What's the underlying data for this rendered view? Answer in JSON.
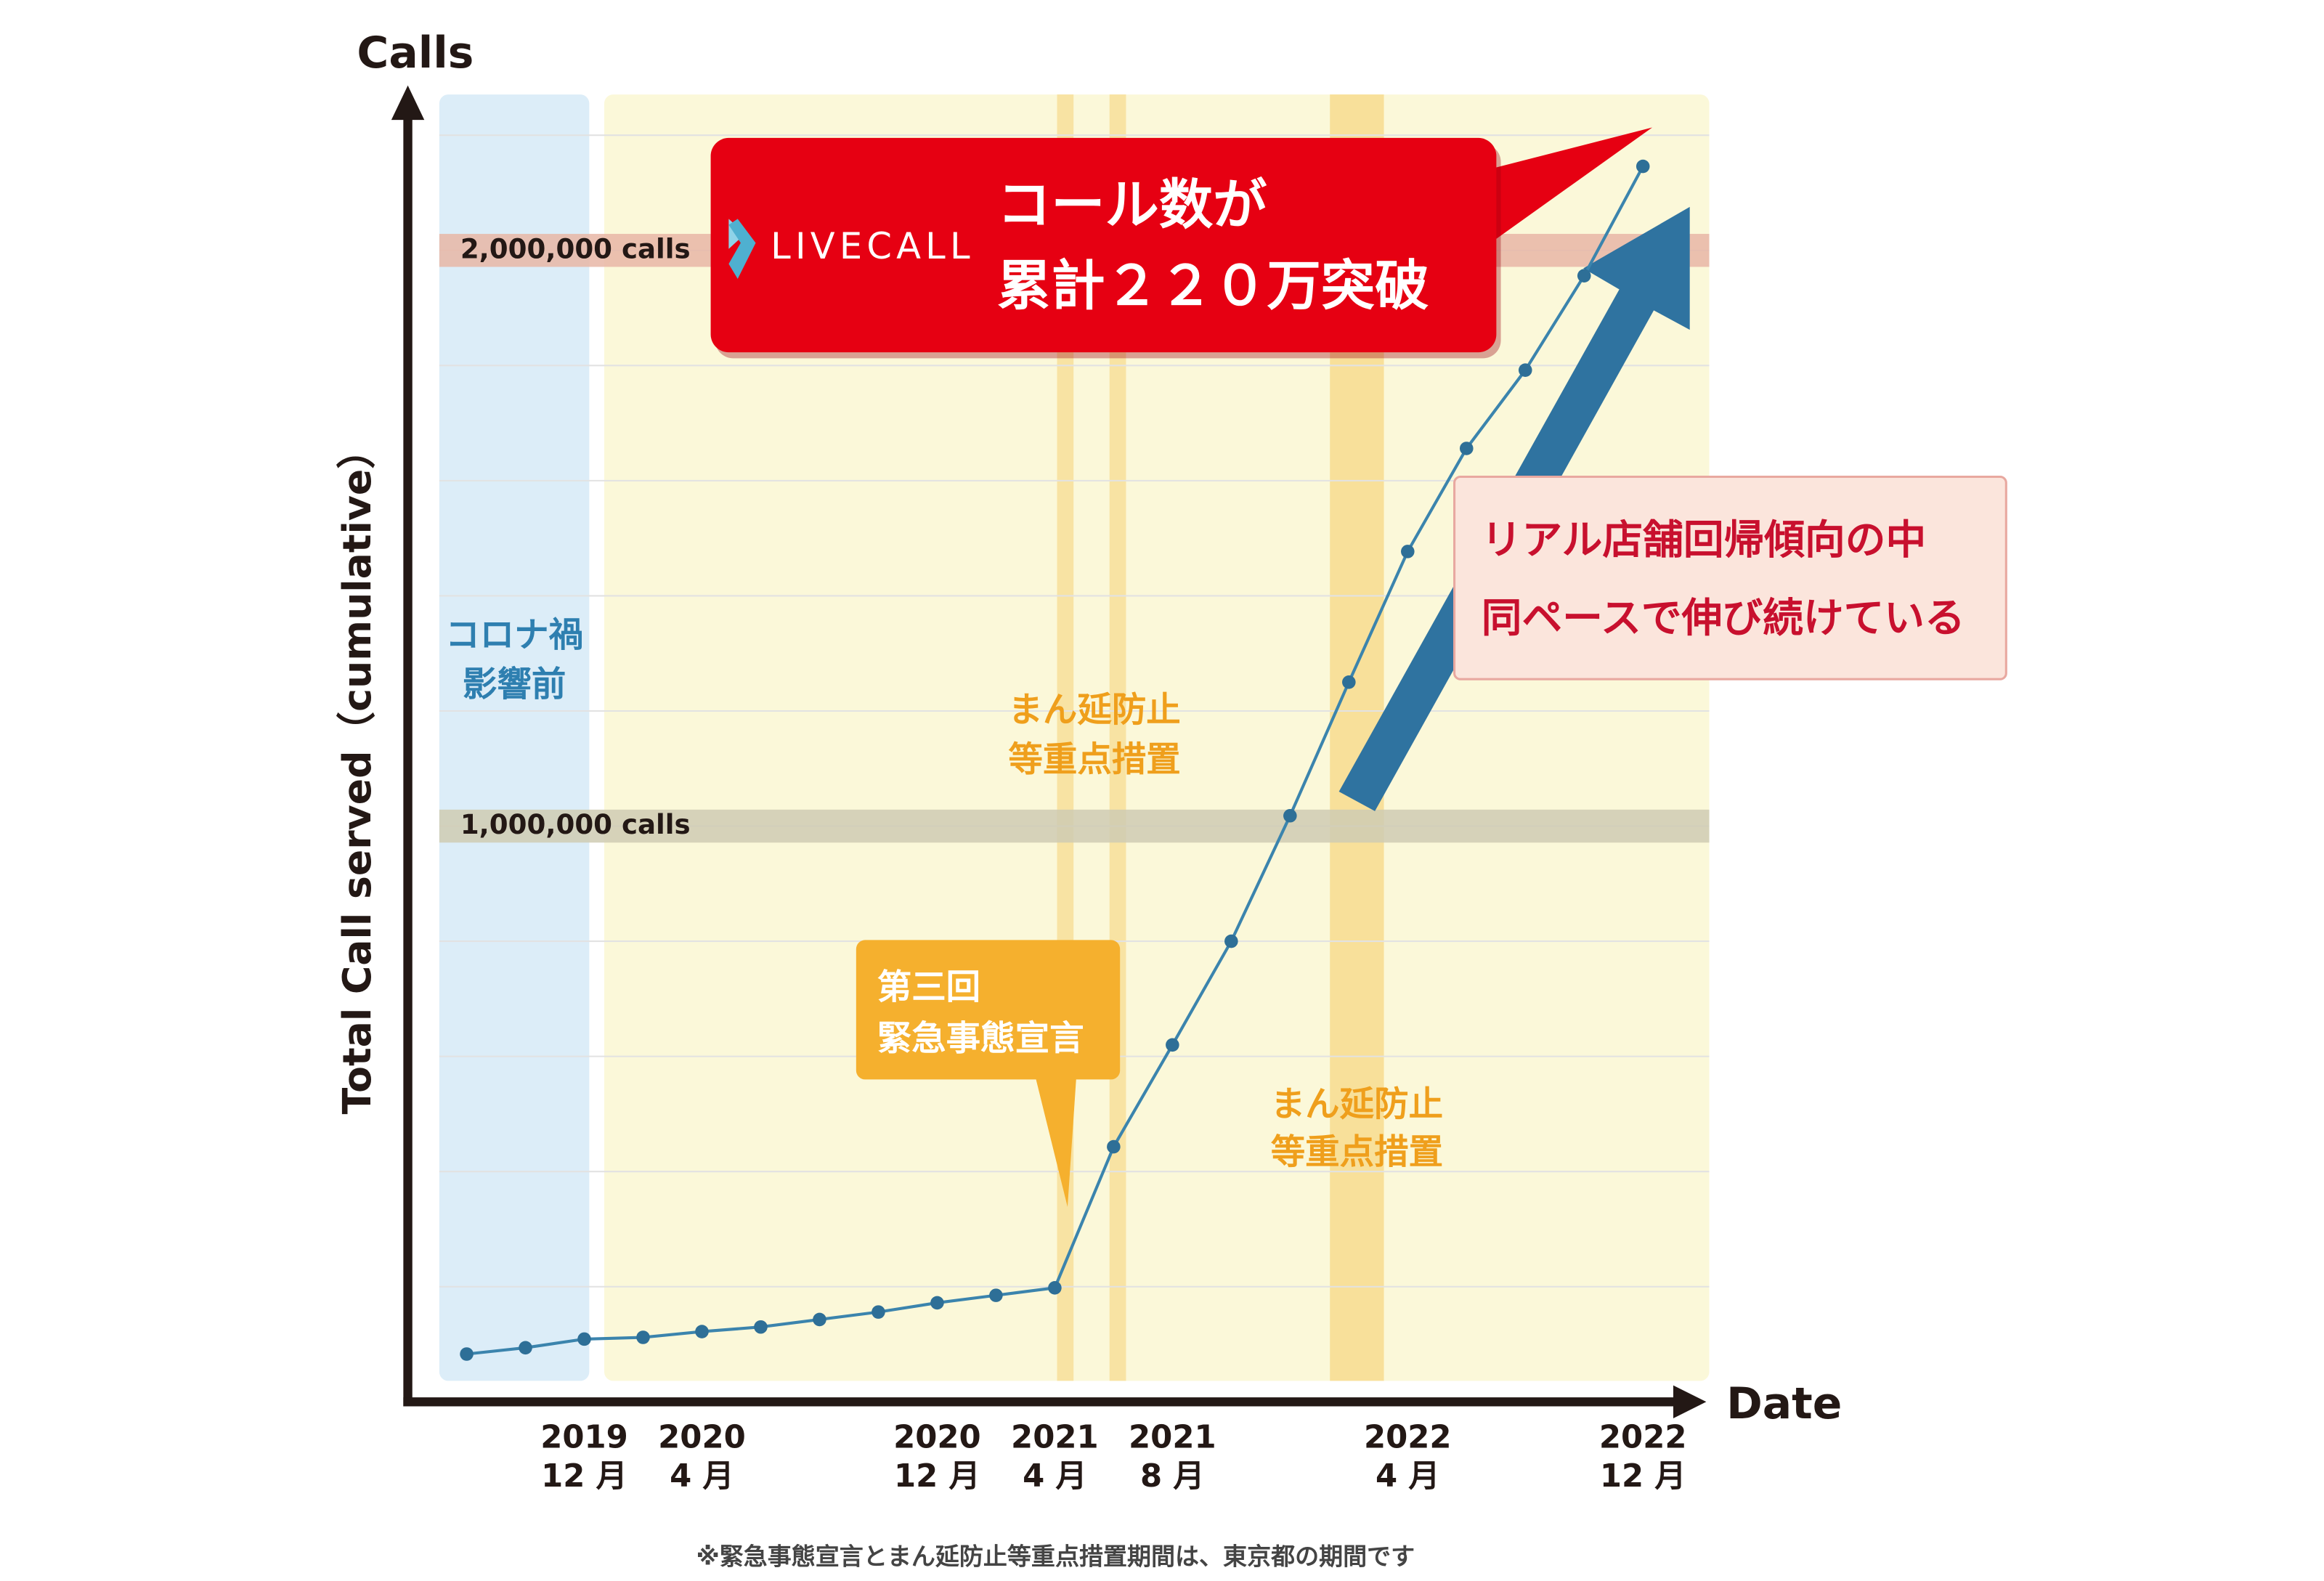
{
  "chart_data": {
    "type": "line",
    "y_title": "Calls",
    "x_title": "Date",
    "y_axis_label": "Total Call served（cumulative）",
    "x": [
      "2019-08",
      "2019-10",
      "2019-12",
      "2020-02",
      "2020-04",
      "2020-06",
      "2020-08",
      "2020-10",
      "2020-12",
      "2021-02",
      "2021-04",
      "2021-06",
      "2021-08",
      "2021-10",
      "2021-12",
      "2022-02",
      "2022-04",
      "2022-06",
      "2022-08",
      "2022-10",
      "2022-12"
    ],
    "values": [
      83000,
      94000,
      109000,
      112000,
      122000,
      130000,
      143000,
      156000,
      172000,
      185000,
      198000,
      443000,
      620000,
      800000,
      1018000,
      1250000,
      1477000,
      1656000,
      1792000,
      1956000,
      2146000
    ],
    "color": "#3b84ad",
    "marker_color": "#2e6f97",
    "xlim": [
      "2019-06",
      "2023-02"
    ],
    "xticks": [
      {
        "value": "2019-12",
        "label": [
          "2019",
          "12 月"
        ]
      },
      {
        "value": "2020-04",
        "label": [
          "2020",
          "4 月"
        ]
      },
      {
        "value": "2020-12",
        "label": [
          "2020",
          "12 月"
        ]
      },
      {
        "value": "2021-04",
        "label": [
          "2021",
          "4 月"
        ]
      },
      {
        "value": "2021-08",
        "label": [
          "2021",
          "8 月"
        ]
      },
      {
        "value": "2022-04",
        "label": [
          "2022",
          "4 月"
        ]
      },
      {
        "value": "2022-12",
        "label": [
          "2022",
          "12 月"
        ]
      }
    ],
    "ylim": [
      0,
      2250000
    ],
    "yticks": [
      200000,
      400000,
      600000,
      800000,
      1000000,
      1200000,
      1400000,
      1600000,
      1800000,
      2000000,
      2200000
    ],
    "ytick_labels": false,
    "grid": true,
    "reference_lines": [
      {
        "value": 2000000,
        "label": "2,000,000 calls",
        "color": "#e7b6a6"
      },
      {
        "value": 1000000,
        "label": "1,000,000 calls",
        "color": "#cfcbb3"
      }
    ],
    "brand": "LIVECALL",
    "headline": [
      "コール数が",
      "累計２２０万突破"
    ],
    "trend_note": [
      "リアル店舗回帰傾向の中",
      "同ペースで伸び続けている"
    ],
    "pre_covid": [
      "コロナ禍",
      "影響前"
    ],
    "emergency": [
      "第三回",
      "緊急事態宣言"
    ],
    "priority_measures": [
      [
        "まん延防止",
        "等重点措置"
      ],
      [
        "まん延防止",
        "等重点措置"
      ]
    ],
    "footnote": "※緊急事態宣言とまん延防止等重点措置期間は、東京都の期間です"
  }
}
